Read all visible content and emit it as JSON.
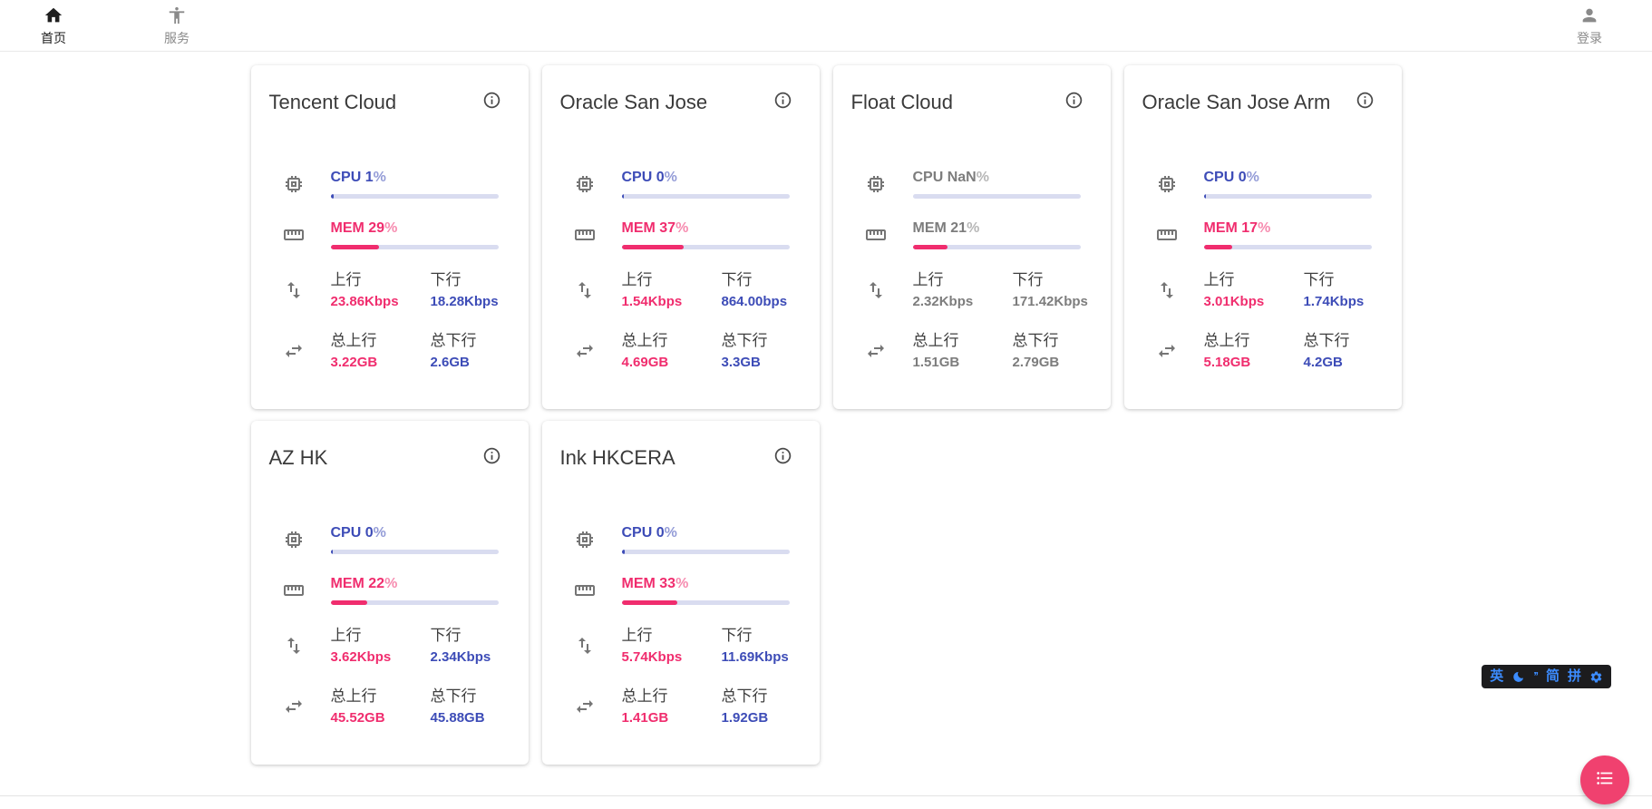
{
  "nav": {
    "home": {
      "label": "首页"
    },
    "services": {
      "label": "服务"
    },
    "login": {
      "label": "登录"
    }
  },
  "labels": {
    "cpu": "CPU",
    "mem": "MEM",
    "percent": "%",
    "up": "上行",
    "down": "下行",
    "total_up": "总上行",
    "total_down": "总下行"
  },
  "colors": {
    "accent_pink": "#F02D6E",
    "accent_blue": "#3D4CB7",
    "bar_track": "#D9DCF0",
    "offline_text": "#7d7d7d",
    "fab_pink": "#F0416F"
  },
  "servers": [
    {
      "name": "Tencent Cloud",
      "cpu_text": "CPU 1",
      "cpu_bar": 2,
      "mem_text": "MEM 29",
      "mem_bar": 29,
      "up": "23.86Kbps",
      "down": "18.28Kbps",
      "total_up": "3.22GB",
      "total_down": "2.6GB",
      "offline": false
    },
    {
      "name": "Oracle San Jose",
      "cpu_text": "CPU 0",
      "cpu_bar": 1.5,
      "mem_text": "MEM 37",
      "mem_bar": 37,
      "up": "1.54Kbps",
      "down": "864.00bps",
      "total_up": "4.69GB",
      "total_down": "3.3GB",
      "offline": false
    },
    {
      "name": "Float Cloud",
      "cpu_text": "CPU NaN",
      "cpu_bar": 0,
      "mem_text": "MEM 21",
      "mem_bar": 21,
      "up": "2.32Kbps",
      "down": "171.42Kbps",
      "total_up": "1.51GB",
      "total_down": "2.79GB",
      "offline": true
    },
    {
      "name": "Oracle San Jose Arm",
      "cpu_text": "CPU 0",
      "cpu_bar": 1.5,
      "mem_text": "MEM 17",
      "mem_bar": 17,
      "up": "3.01Kbps",
      "down": "1.74Kbps",
      "total_up": "5.18GB",
      "total_down": "4.2GB",
      "offline": false
    },
    {
      "name": "AZ HK",
      "cpu_text": "CPU 0",
      "cpu_bar": 1.5,
      "mem_text": "MEM 22",
      "mem_bar": 22,
      "up": "3.62Kbps",
      "down": "2.34Kbps",
      "total_up": "45.52GB",
      "total_down": "45.88GB",
      "offline": false
    },
    {
      "name": "Ink HKCERA",
      "cpu_text": "CPU 0",
      "cpu_bar": 2,
      "mem_text": "MEM 33",
      "mem_bar": 33,
      "up": "5.74Kbps",
      "down": "11.69Kbps",
      "total_up": "1.41GB",
      "total_down": "1.92GB",
      "offline": false
    }
  ],
  "ime": {
    "english": "英",
    "punct": "’’",
    "simplified": "简",
    "pinyin": "拼"
  }
}
